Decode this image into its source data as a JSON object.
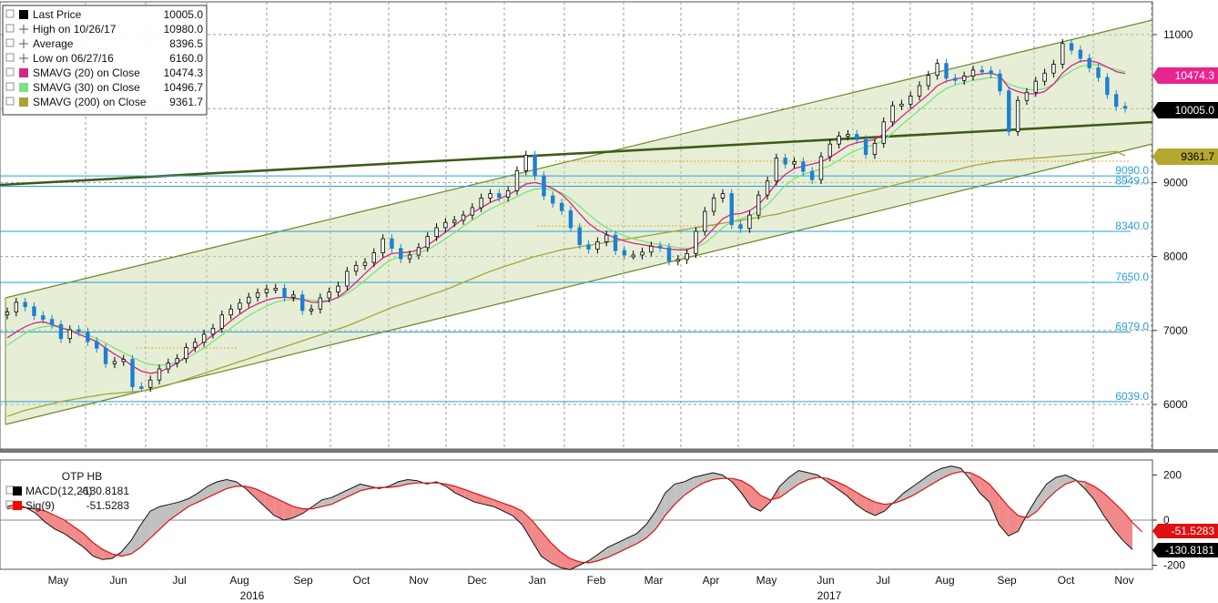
{
  "chart_data": [
    {
      "type": "line",
      "title": "",
      "ylim": [
        5400,
        11600
      ],
      "y_ticks": [
        6000,
        7000,
        8000,
        9000,
        11000
      ],
      "grid": true,
      "legend": {
        "placement": "top-left",
        "entries": [
          {
            "label": "Last Price",
            "value": "10005.0",
            "color": "#000000"
          },
          {
            "label": "High on 10/26/17",
            "value": "10980.0",
            "color": "#555555"
          },
          {
            "label": "Average",
            "value": "8396.5",
            "color": "#555555"
          },
          {
            "label": "Low on 06/27/16",
            "value": "6160.0",
            "color": "#555555"
          },
          {
            "label": "SMAVG (20) on Close",
            "value": "10474.3",
            "color": "#d6248a"
          },
          {
            "label": "SMAVG (30) on Close",
            "value": "10496.7",
            "color": "#7ee07e"
          },
          {
            "label": "SMAVG (200) on Close",
            "value": "9361.7",
            "color": "#a9a23a"
          }
        ]
      },
      "levels": [
        {
          "label": "9090.0",
          "value": 9090
        },
        {
          "label": "8949.0",
          "value": 8949
        },
        {
          "label": "8340.0",
          "value": 8340
        },
        {
          "label": "7650.0",
          "value": 7650
        },
        {
          "label": "6979.0",
          "value": 6979
        },
        {
          "label": "6039.0",
          "value": 6039
        }
      ],
      "value_tags": [
        {
          "label": "10474.3",
          "value": 10474.3,
          "color": "#e8248f",
          "text_color": "#ffffff"
        },
        {
          "label": "10005.0",
          "value": 10005.0,
          "color": "#000000",
          "text_color": "#ffffff"
        },
        {
          "label": "9361.7",
          "value": 9361.7,
          "color": "#b5a82e",
          "text_color": "#000000"
        }
      ],
      "series": [
        {
          "name": "Last Price",
          "values": [
            7250,
            7380,
            7320,
            7200,
            7150,
            7080,
            6890,
            7010,
            6980,
            6850,
            6760,
            6550,
            6580,
            6610,
            6240,
            6230,
            6330,
            6480,
            6560,
            6620,
            6770,
            6840,
            6950,
            7030,
            7210,
            7290,
            7370,
            7450,
            7510,
            7560,
            7570,
            7450,
            7480,
            7270,
            7290,
            7440,
            7520,
            7600,
            7800,
            7880,
            7920,
            8050,
            8240,
            8110,
            7970,
            8020,
            8120,
            8270,
            8390,
            8460,
            8490,
            8560,
            8660,
            8790,
            8850,
            8800,
            8890,
            9160,
            9370,
            9090,
            8820,
            8720,
            8620,
            8390,
            8160,
            8100,
            8200,
            8290,
            8080,
            8020,
            8020,
            8060,
            8140,
            8120,
            7940,
            7960,
            8040,
            8340,
            8610,
            8790,
            8850,
            8430,
            8380,
            8560,
            8830,
            9020,
            9330,
            9250,
            9280,
            9150,
            9040,
            9350,
            9520,
            9630,
            9650,
            9580,
            9380,
            9530,
            9820,
            10040,
            10060,
            10170,
            10310,
            10450,
            10610,
            10410,
            10380,
            10440,
            10520,
            10510,
            10470,
            10240,
            9690,
            10110,
            10220,
            10370,
            10480,
            10600,
            10880,
            10790,
            10680,
            10550,
            10420,
            10190,
            10030,
            10005
          ]
        },
        {
          "name": "SMAVG (20) on Close",
          "values": [
            6900,
            6980,
            7050,
            7100,
            7120,
            7080,
            7040,
            7000,
            6950,
            6900,
            6850,
            6760,
            6680,
            6610,
            6520,
            6450,
            6420,
            6440,
            6490,
            6560,
            6650,
            6760,
            6850,
            6940,
            7030,
            7130,
            7220,
            7300,
            7360,
            7410,
            7440,
            7450,
            7440,
            7420,
            7380,
            7380,
            7400,
            7450,
            7540,
            7650,
            7770,
            7880,
            7980,
            8040,
            8050,
            8060,
            8090,
            8150,
            8240,
            8330,
            8420,
            8510,
            8590,
            8660,
            8730,
            8780,
            8830,
            8900,
            8980,
            9000,
            8970,
            8920,
            8840,
            8720,
            8580,
            8450,
            8360,
            8300,
            8250,
            8210,
            8180,
            8160,
            8140,
            8120,
            8100,
            8090,
            8090,
            8140,
            8250,
            8380,
            8510,
            8570,
            8580,
            8620,
            8700,
            8830,
            8990,
            9110,
            9190,
            9220,
            9250,
            9280,
            9340,
            9420,
            9500,
            9540,
            9560,
            9580,
            9660,
            9780,
            9890,
            9990,
            10090,
            10190,
            10310,
            10370,
            10400,
            10420,
            10450,
            10470,
            10480,
            10440,
            10280,
            10230,
            10200,
            10200,
            10230,
            10330,
            10480,
            10580,
            10640,
            10650,
            10620,
            10560,
            10500,
            10474.3
          ]
        },
        {
          "name": "SMAVG (30) on Close",
          "values": [
            6800,
            6880,
            6960,
            7020,
            7050,
            7060,
            7040,
            7010,
            6980,
            6940,
            6890,
            6830,
            6760,
            6700,
            6640,
            6580,
            6540,
            6530,
            6540,
            6570,
            6620,
            6690,
            6760,
            6850,
            6940,
            7030,
            7120,
            7200,
            7270,
            7330,
            7380,
            7410,
            7420,
            7420,
            7410,
            7400,
            7410,
            7440,
            7500,
            7580,
            7680,
            7780,
            7880,
            7960,
            8000,
            8020,
            8050,
            8090,
            8160,
            8240,
            8320,
            8410,
            8490,
            8570,
            8640,
            8700,
            8750,
            8810,
            8870,
            8910,
            8920,
            8900,
            8860,
            8780,
            8680,
            8570,
            8470,
            8390,
            8330,
            8280,
            8240,
            8210,
            8180,
            8160,
            8140,
            8120,
            8110,
            8120,
            8180,
            8280,
            8390,
            8470,
            8510,
            8550,
            8610,
            8700,
            8830,
            8960,
            9050,
            9110,
            9150,
            9180,
            9230,
            9300,
            9380,
            9440,
            9480,
            9510,
            9570,
            9670,
            9780,
            9880,
            9980,
            10080,
            10190,
            10270,
            10320,
            10350,
            10380,
            10400,
            10420,
            10410,
            10330,
            10290,
            10260,
            10250,
            10270,
            10330,
            10430,
            10510,
            10570,
            10590,
            10590,
            10560,
            10530,
            10496.7
          ]
        },
        {
          "name": "SMAVG (200) on Close",
          "values": [
            5840,
            5880,
            5920,
            5950,
            5980,
            6010,
            6040,
            6060,
            6080,
            6100,
            6120,
            6140,
            6150,
            6160,
            6170,
            6180,
            6200,
            6230,
            6260,
            6300,
            6340,
            6380,
            6420,
            6460,
            6500,
            6540,
            6580,
            6620,
            6660,
            6700,
            6740,
            6780,
            6820,
            6860,
            6900,
            6940,
            6980,
            7020,
            7060,
            7110,
            7160,
            7210,
            7260,
            7310,
            7350,
            7390,
            7430,
            7470,
            7510,
            7550,
            7600,
            7650,
            7700,
            7750,
            7800,
            7840,
            7880,
            7920,
            7960,
            8000,
            8030,
            8060,
            8090,
            8110,
            8130,
            8150,
            8170,
            8190,
            8210,
            8230,
            8250,
            8270,
            8290,
            8310,
            8330,
            8350,
            8370,
            8390,
            8410,
            8430,
            8450,
            8470,
            8490,
            8510,
            8530,
            8550,
            8570,
            8600,
            8630,
            8660,
            8690,
            8720,
            8750,
            8780,
            8810,
            8840,
            8870,
            8900,
            8930,
            8960,
            8990,
            9020,
            9050,
            9080,
            9110,
            9140,
            9170,
            9200,
            9230,
            9250,
            9270,
            9290,
            9300,
            9310,
            9320,
            9330,
            9340,
            9350,
            9360,
            9370,
            9380,
            9390,
            9400,
            9410,
            9420,
            9361.7
          ]
        }
      ]
    },
    {
      "type": "line",
      "title": "OTP HB",
      "ylim": [
        -260,
        300
      ],
      "y_ticks": [
        200,
        0,
        -200
      ],
      "legend": {
        "placement": "top-left",
        "entries": [
          {
            "label": "MACD(12,26)",
            "value": "-130.8181",
            "color": "#000000"
          },
          {
            "label": "Sig(9)",
            "value": "-51.5283",
            "color": "#ff0000"
          }
        ]
      },
      "value_tags": [
        {
          "label": "-51.5283",
          "value": -51.5283,
          "color": "#e01010",
          "text_color": "#ffffff"
        },
        {
          "label": "-130.8181",
          "value": -130.8181,
          "color": "#000000",
          "text_color": "#ffffff"
        }
      ],
      "series": [
        {
          "name": "MACD(12,26)",
          "values": [
            60,
            70,
            55,
            30,
            -10,
            -40,
            -60,
            -90,
            -120,
            -160,
            -175,
            -170,
            -140,
            -90,
            -20,
            40,
            60,
            70,
            80,
            95,
            120,
            150,
            170,
            180,
            170,
            140,
            100,
            60,
            20,
            0,
            10,
            30,
            60,
            90,
            100,
            120,
            140,
            160,
            150,
            140,
            150,
            170,
            180,
            175,
            160,
            170,
            150,
            120,
            100,
            80,
            70,
            60,
            40,
            20,
            -20,
            -90,
            -160,
            -190,
            -210,
            -220,
            -200,
            -180,
            -150,
            -120,
            -100,
            -80,
            -60,
            -20,
            40,
            120,
            160,
            170,
            190,
            200,
            210,
            200,
            170,
            120,
            60,
            40,
            80,
            150,
            190,
            220,
            210,
            200,
            170,
            140,
            110,
            70,
            40,
            20,
            40,
            80,
            120,
            150,
            180,
            210,
            230,
            240,
            230,
            180,
            120,
            80,
            -20,
            -70,
            -50,
            30,
            100,
            160,
            190,
            200,
            180,
            140,
            90,
            20,
            -40,
            -90,
            -130.8181
          ]
        },
        {
          "name": "Sig(9)",
          "values": [
            50,
            55,
            55,
            50,
            40,
            20,
            0,
            -30,
            -60,
            -100,
            -130,
            -150,
            -160,
            -150,
            -120,
            -80,
            -40,
            0,
            30,
            60,
            80,
            100,
            120,
            140,
            150,
            150,
            140,
            120,
            100,
            80,
            60,
            50,
            50,
            60,
            70,
            90,
            110,
            130,
            140,
            145,
            145,
            150,
            160,
            165,
            165,
            165,
            160,
            150,
            135,
            120,
            105,
            90,
            75,
            60,
            40,
            0,
            -50,
            -100,
            -140,
            -170,
            -185,
            -190,
            -180,
            -165,
            -145,
            -125,
            -105,
            -80,
            -40,
            20,
            70,
            110,
            140,
            165,
            180,
            185,
            185,
            175,
            150,
            110,
            90,
            100,
            130,
            160,
            180,
            190,
            185,
            170,
            150,
            125,
            100,
            80,
            70,
            75,
            90,
            110,
            135,
            160,
            185,
            205,
            215,
            210,
            190,
            160,
            110,
            60,
            20,
            10,
            40,
            90,
            130,
            160,
            175,
            170,
            150,
            120,
            80,
            40,
            -10,
            -51.5283
          ]
        }
      ]
    }
  ],
  "x_axis": {
    "months": [
      "May",
      "Jun",
      "Jul",
      "Aug",
      "Sep",
      "Oct",
      "Nov",
      "Dec",
      "Jan",
      "Feb",
      "Mar",
      "Apr",
      "May",
      "Jun",
      "Jul",
      "Aug",
      "Sep",
      "Oct",
      "Nov"
    ],
    "years": [
      "2016",
      "2017"
    ]
  }
}
